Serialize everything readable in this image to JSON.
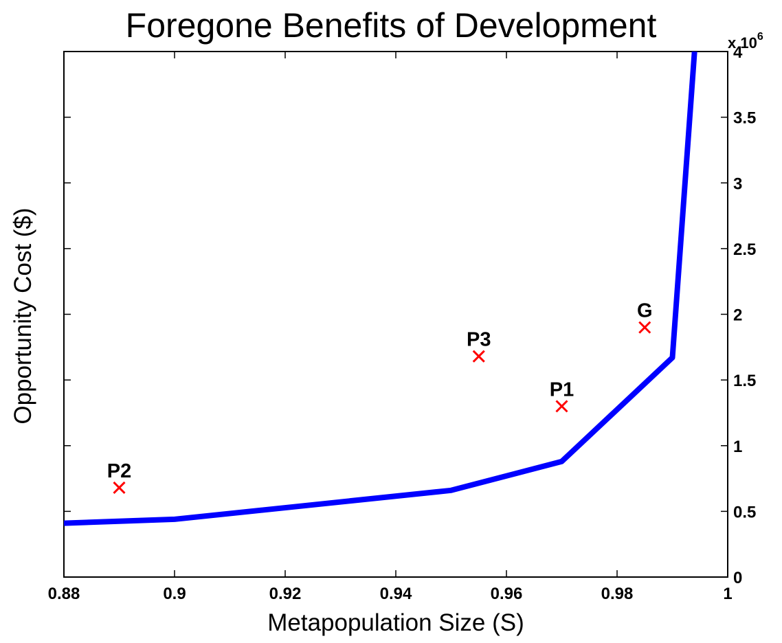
{
  "chart_data": {
    "type": "line",
    "title": "Foregone Benefits of Development",
    "xlabel": "Metapopulation Size (S)",
    "ylabel": "Opportunity Cost ($)",
    "xlim": [
      0.88,
      1.0
    ],
    "ylim": [
      0,
      4000000
    ],
    "x_ticks": [
      0.88,
      0.9,
      0.92,
      0.94,
      0.96,
      0.98,
      1.0
    ],
    "x_tick_labels": [
      "0.88",
      "0.9",
      "0.92",
      "0.94",
      "0.96",
      "0.98",
      "1"
    ],
    "y_ticks": [
      0,
      500000,
      1000000,
      1500000,
      2000000,
      2500000,
      3000000,
      3500000,
      4000000
    ],
    "y_tick_labels": [
      "0",
      "0.5",
      "1",
      "1.5",
      "2",
      "2.5",
      "3",
      "3.5",
      "4"
    ],
    "y_axis_side": "right",
    "y_exponent_label": {
      "base": "x 10",
      "power": "6"
    },
    "grid": false,
    "legend": "none",
    "series": [
      {
        "color": "#0000ff",
        "x": [
          0.88,
          0.9,
          0.95,
          0.97,
          0.99,
          0.994
        ],
        "y": [
          410000,
          440000,
          660000,
          880000,
          1670000,
          4000000
        ]
      }
    ],
    "points": [
      {
        "label": "P2",
        "x": 0.89,
        "y": 680000,
        "color": "#ff0000",
        "marker": "x"
      },
      {
        "label": "P3",
        "x": 0.955,
        "y": 1680000,
        "color": "#ff0000",
        "marker": "x"
      },
      {
        "label": "P1",
        "x": 0.97,
        "y": 1300000,
        "color": "#ff0000",
        "marker": "x"
      },
      {
        "label": "G",
        "x": 0.985,
        "y": 1900000,
        "color": "#ff0000",
        "marker": "x"
      }
    ]
  }
}
